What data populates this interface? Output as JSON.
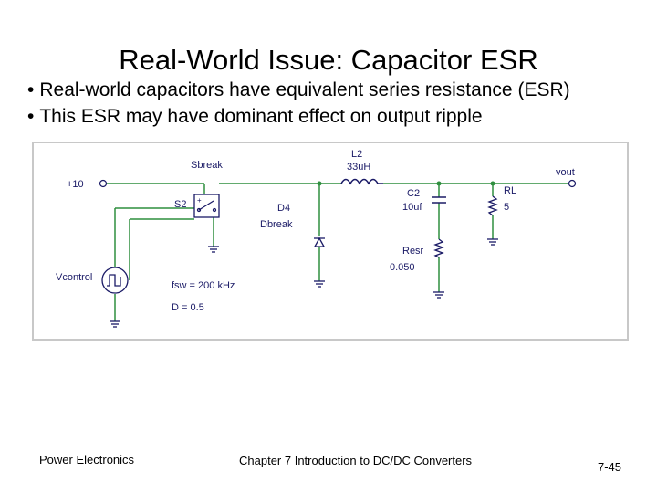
{
  "slide": {
    "title": "Real-World Issue: Capacitor ESR",
    "bullets": [
      "Real-world capacitors have equivalent series resistance (ESR)",
      "This ESR may have dominant effect on output ripple"
    ]
  },
  "schematic": {
    "source_label": "+10",
    "switch_model": "Sbreak",
    "switch_name": "S2",
    "diode_name": "D4",
    "diode_model": "Dbreak",
    "inductor_name": "L2",
    "inductor_value": "33uH",
    "cap_name": "C2",
    "cap_value": "10uf",
    "esr_name": "Resr",
    "esr_value": "0.050",
    "load_name": "RL",
    "load_value": "5",
    "output_label": "vout",
    "control_label": "Vcontrol",
    "fsw_text": "fsw = 200 kHz",
    "duty_text": "D = 0.5",
    "colors": {
      "wire": "#2f8f3f",
      "component": "#1a1a66",
      "frame": "#c8c8c8"
    }
  },
  "footer": {
    "course": "Power Electronics",
    "chapter": "Chapter 7 Introduction to DC/DC Converters",
    "page": "7-45"
  }
}
